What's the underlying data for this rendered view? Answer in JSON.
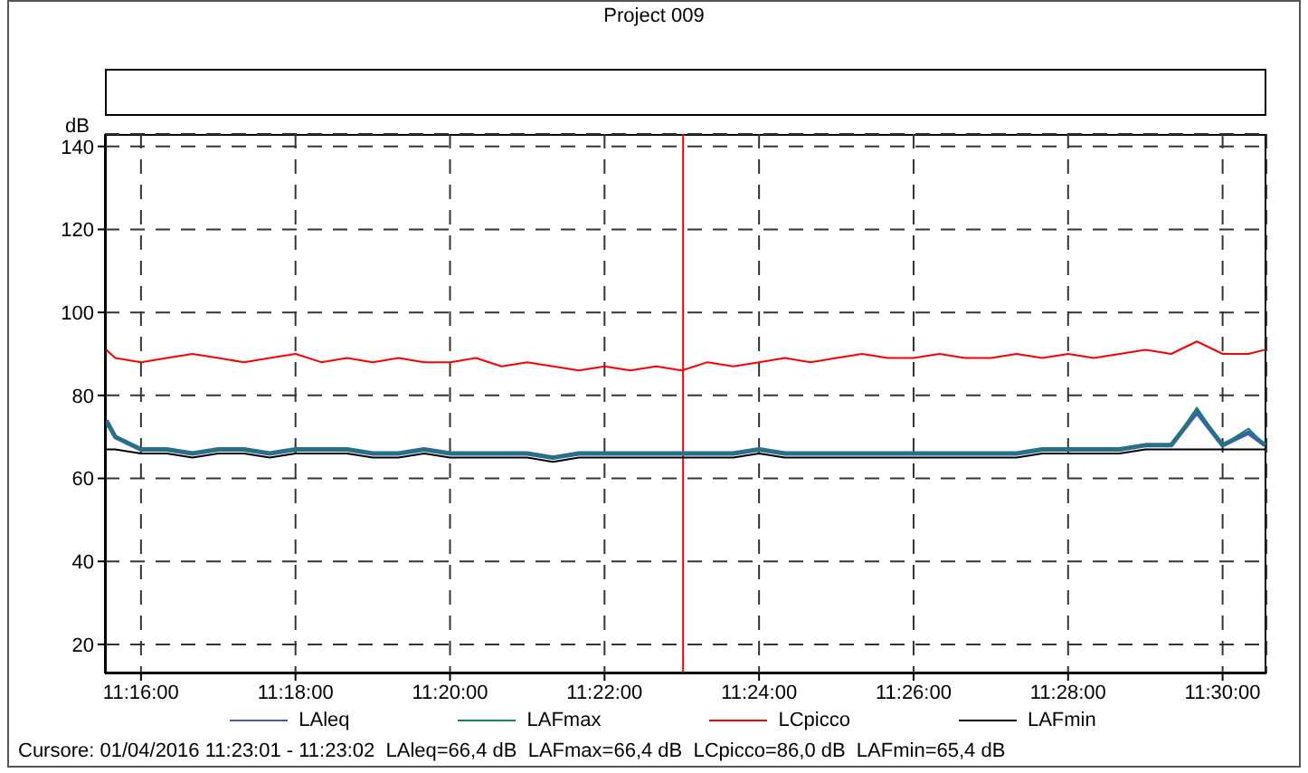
{
  "chart_data": {
    "type": "line",
    "title": "Project 009",
    "ylabel": "dB",
    "x": [
      11.259167,
      11.261111,
      11.266667,
      11.272222,
      11.277778,
      11.283333,
      11.288889,
      11.294444,
      11.3,
      11.305556,
      11.311111,
      11.316667,
      11.322222,
      11.327778,
      11.333333,
      11.338889,
      11.344444,
      11.35,
      11.355556,
      11.361111,
      11.366667,
      11.372222,
      11.377778,
      11.383333,
      11.388889,
      11.394444,
      11.4,
      11.405556,
      11.411111,
      11.416667,
      11.422222,
      11.427778,
      11.433333,
      11.438889,
      11.444444,
      11.45,
      11.455556,
      11.461111,
      11.466667,
      11.472222,
      11.477778,
      11.483333,
      11.488889,
      11.494444,
      11.5,
      11.505556,
      11.509167
    ],
    "series": [
      {
        "name": "LAleq",
        "color": "#3a5fb0",
        "values": [
          74,
          70,
          67,
          67,
          66,
          67,
          67,
          66,
          67,
          67,
          67,
          66,
          66,
          67,
          66,
          66,
          66,
          66,
          65,
          66,
          66,
          66,
          66,
          66,
          66,
          66,
          67,
          66,
          66,
          66,
          66,
          66,
          66,
          66,
          66,
          66,
          66,
          67,
          67,
          67,
          67,
          68,
          68,
          76,
          68,
          71,
          68
        ]
      },
      {
        "name": "LAFmax",
        "color": "#13855a",
        "values": [
          73,
          70,
          67,
          67,
          66,
          67,
          67,
          66,
          67,
          67,
          67,
          66,
          66,
          67,
          66,
          66,
          66,
          66,
          65,
          66,
          66,
          66,
          66,
          66,
          66,
          66,
          67,
          66,
          66,
          66,
          66,
          66,
          66,
          66,
          66,
          66,
          66,
          67,
          67,
          67,
          67,
          68,
          68,
          77,
          68,
          72,
          68
        ]
      },
      {
        "name": "LCpicco",
        "color": "#ff0000",
        "values": [
          91,
          89,
          88,
          89,
          90,
          89,
          88,
          89,
          90,
          88,
          89,
          88,
          89,
          88,
          88,
          89,
          87,
          88,
          87,
          86,
          87,
          86,
          87,
          86,
          88,
          87,
          88,
          89,
          88,
          89,
          90,
          89,
          89,
          90,
          89,
          89,
          90,
          89,
          90,
          89,
          90,
          91,
          90,
          93,
          90,
          90,
          91
        ]
      },
      {
        "name": "LAFmin",
        "color": "#000000",
        "values": [
          67,
          67,
          66,
          66,
          65,
          66,
          66,
          65,
          66,
          66,
          66,
          65,
          65,
          66,
          65,
          65,
          65,
          65,
          64,
          65,
          65,
          65,
          65,
          65,
          65,
          65,
          66,
          65,
          65,
          65,
          65,
          65,
          65,
          65,
          65,
          65,
          65,
          66,
          66,
          66,
          66,
          67,
          67,
          67,
          67,
          67,
          67
        ]
      }
    ],
    "xlim": [
      11.258889,
      11.509444
    ],
    "xticks": [
      {
        "value": 11.266667,
        "label": "11:16:00"
      },
      {
        "value": 11.3,
        "label": "11:18:00"
      },
      {
        "value": 11.333333,
        "label": "11:20:00"
      },
      {
        "value": 11.366667,
        "label": "11:22:00"
      },
      {
        "value": 11.4,
        "label": "11:24:00"
      },
      {
        "value": 11.433333,
        "label": "11:26:00"
      },
      {
        "value": 11.466667,
        "label": "11:28:00"
      },
      {
        "value": 11.5,
        "label": "11:30:00"
      }
    ],
    "ylim": [
      13,
      143
    ],
    "yticks": [
      20,
      40,
      60,
      80,
      100,
      120,
      140
    ],
    "ref_lines": [
      {
        "axis": "x",
        "value": 11.383611,
        "color": "#ff0000"
      }
    ],
    "annotations": [
      "Cursore: 01/04/2016 11:23:01 - 11:23:02  LAleq=66,4 dB  LAFmax=66,4 dB  LCpicco=86,0 dB  LAFmin=65,4 dB"
    ],
    "grid": true,
    "legend": "bottom",
    "marker": "none",
    "line_style": "solid"
  }
}
